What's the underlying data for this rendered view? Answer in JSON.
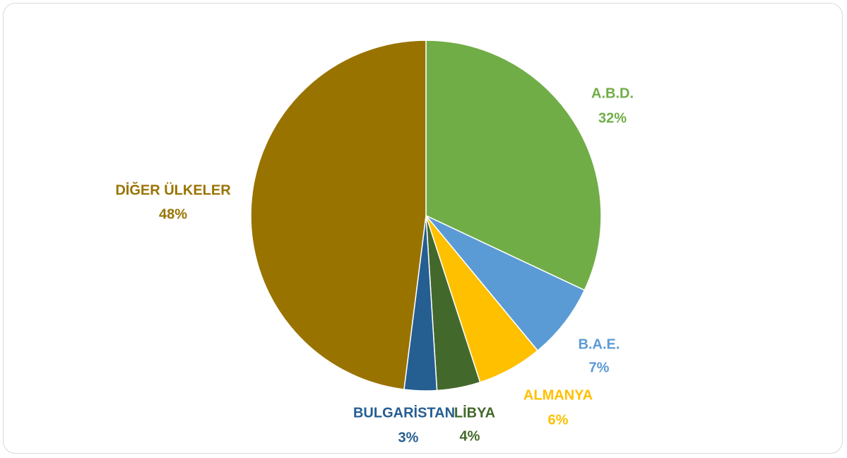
{
  "chart_data": {
    "type": "pie",
    "categories": [
      "A.B.D.",
      "B.A.E.",
      "ALMANYA",
      "LİBYA",
      "BULGARİSTAN",
      "DİĞER ÜLKELER"
    ],
    "values": [
      32,
      7,
      6,
      4,
      3,
      48
    ],
    "value_labels": [
      "32%",
      "7%",
      "6%",
      "4%",
      "3%",
      "48%"
    ],
    "colors": [
      "#70ad47",
      "#5b9bd5",
      "#ffc000",
      "#43682b",
      "#255e91",
      "#997300"
    ]
  }
}
